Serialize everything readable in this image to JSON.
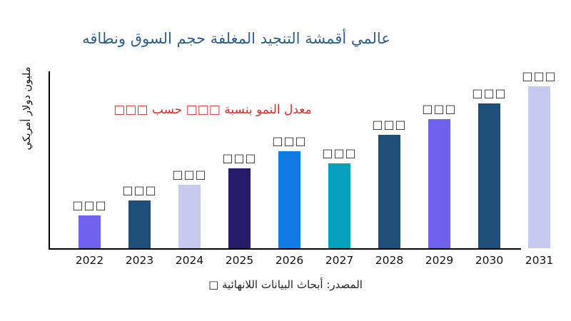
{
  "title": "عالمي أقمشة التنجيد المغلفة حجم السوق ونطاقه",
  "growth_annotation": "معدل النمو بنسبة □□□ حسب □□□",
  "y_axis_label": "مليون دولار أمريكي",
  "source_note": "المصدر: أبحاث البيانات اللانهائية □",
  "colors": {
    "title": "#2d5e8f",
    "annotation": "#e02a2a",
    "axis": "#000000",
    "tick_label": "#111111",
    "bar_value_label": "#2b2b2b"
  },
  "chart_data": {
    "type": "bar",
    "title": "عالمي أقمشة التنجيد المغلفة حجم السوق ونطاقه",
    "xlabel": "",
    "ylabel": "مليون دولار أمريكي",
    "categories": [
      "2022",
      "2023",
      "2024",
      "2025",
      "2026",
      "2027",
      "2028",
      "2029",
      "2030",
      "2031"
    ],
    "value_labels": [
      "□□□",
      "□□□",
      "□□□",
      "□□□",
      "□□□",
      "□□□",
      "□□□",
      "□□□",
      "□□□",
      "□□□"
    ],
    "relative_heights": [
      46,
      67,
      89,
      112,
      136,
      119,
      159,
      181,
      203,
      227
    ],
    "bar_colors": [
      "#6f63ee",
      "#1f4e79",
      "#c7caee",
      "#251d69",
      "#117be4",
      "#05a0bb",
      "#1f4e79",
      "#6f63ee",
      "#1f4e79",
      "#c7caee"
    ],
    "grid": false,
    "legend": "none",
    "annotation": "معدل النمو بنسبة □□□ حسب □□□"
  }
}
